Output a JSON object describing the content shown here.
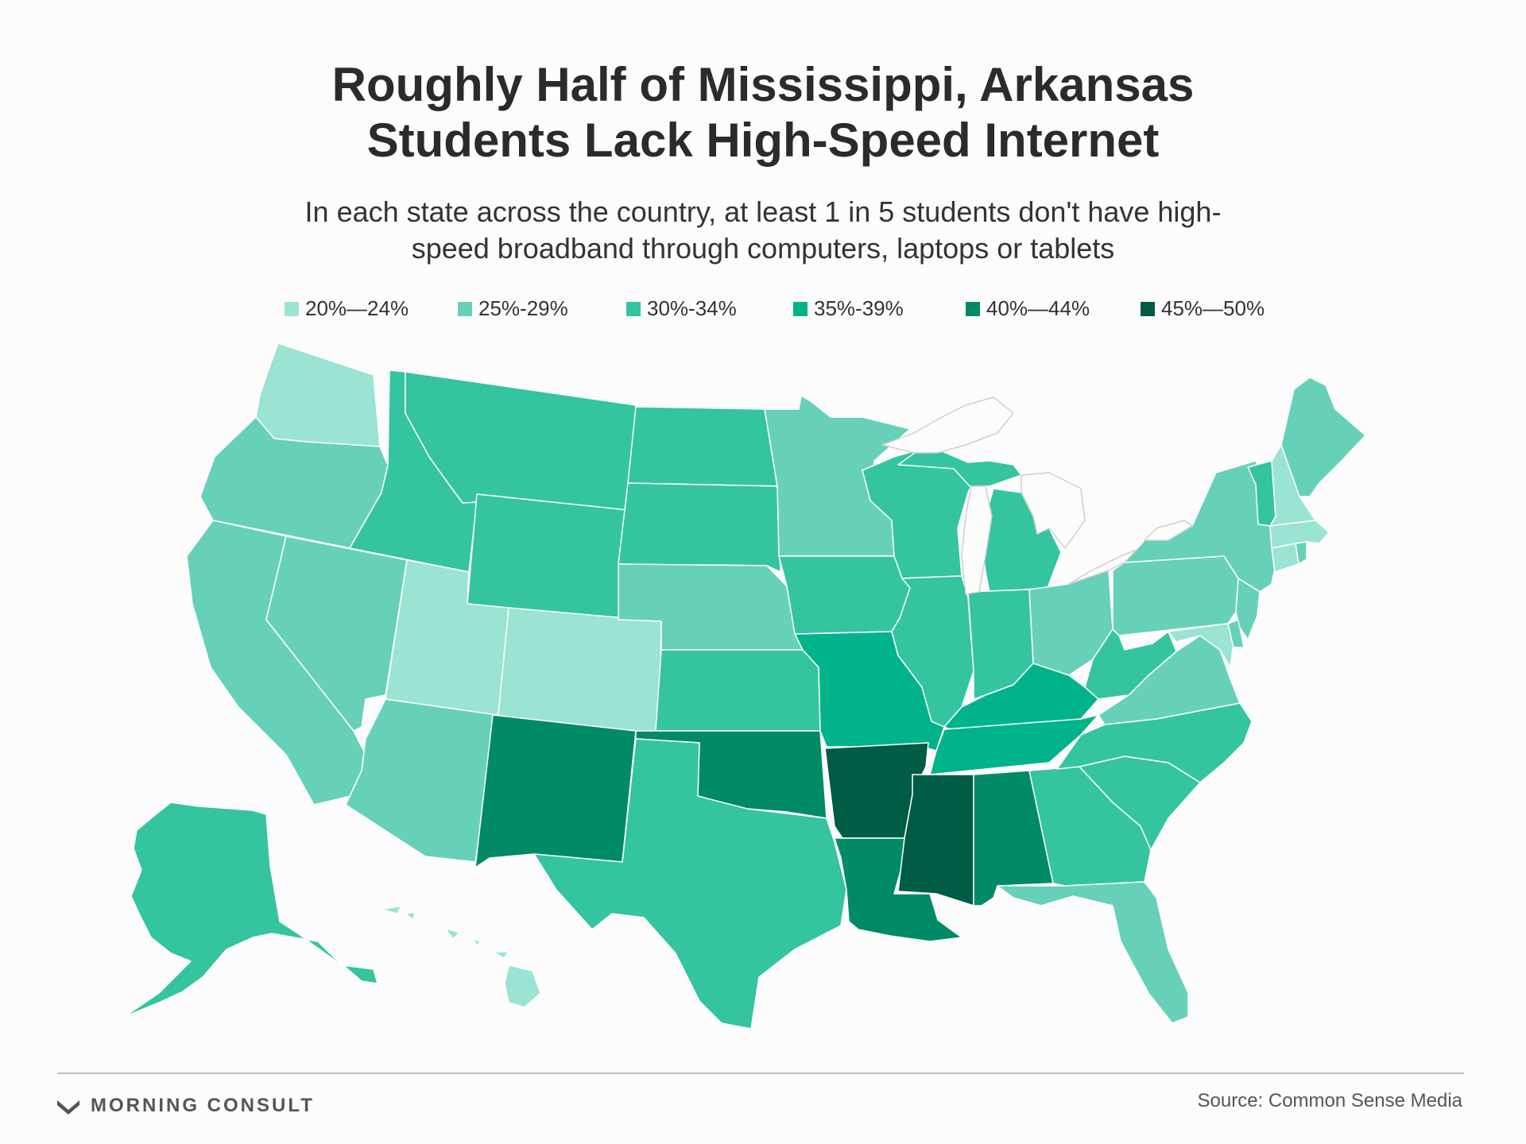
{
  "title": {
    "line1": "Roughly Half of Mississippi, Arkansas",
    "line2": "Students Lack High-Speed Internet"
  },
  "subtitle": {
    "line1": "In each state across the country, at least 1 in 5 students don't have high-",
    "line2": "speed broadband through computers, laptops or tablets"
  },
  "legend": [
    {
      "label": "20%—24%",
      "color": "#9be3d2"
    },
    {
      "label": "25%-29%",
      "color": "#66d1b8"
    },
    {
      "label": "30%-34%",
      "color": "#34c4a0"
    },
    {
      "label": "35%-39%",
      "color": "#00b38a"
    },
    {
      "label": "40%—44%",
      "color": "#008a66"
    },
    {
      "label": "45%—50%",
      "color": "#005c45"
    }
  ],
  "states": [
    {
      "name": "Washington",
      "bin": "20%—24%"
    },
    {
      "name": "Oregon",
      "bin": "25%-29%"
    },
    {
      "name": "California",
      "bin": "25%-29%"
    },
    {
      "name": "Nevada",
      "bin": "25%-29%"
    },
    {
      "name": "Idaho",
      "bin": "30%-34%"
    },
    {
      "name": "Montana",
      "bin": "30%-34%"
    },
    {
      "name": "Wyoming",
      "bin": "30%-34%"
    },
    {
      "name": "Utah",
      "bin": "20%—24%"
    },
    {
      "name": "Colorado",
      "bin": "20%—24%"
    },
    {
      "name": "Arizona",
      "bin": "25%-29%"
    },
    {
      "name": "New Mexico",
      "bin": "40%—44%"
    },
    {
      "name": "North Dakota",
      "bin": "30%-34%"
    },
    {
      "name": "South Dakota",
      "bin": "30%-34%"
    },
    {
      "name": "Nebraska",
      "bin": "25%-29%"
    },
    {
      "name": "Kansas",
      "bin": "30%-34%"
    },
    {
      "name": "Oklahoma",
      "bin": "40%—44%"
    },
    {
      "name": "Texas",
      "bin": "30%-34%"
    },
    {
      "name": "Minnesota",
      "bin": "25%-29%"
    },
    {
      "name": "Iowa",
      "bin": "30%-34%"
    },
    {
      "name": "Missouri",
      "bin": "35%-39%"
    },
    {
      "name": "Arkansas",
      "bin": "45%—50%"
    },
    {
      "name": "Louisiana",
      "bin": "40%—44%"
    },
    {
      "name": "Wisconsin",
      "bin": "30%-34%"
    },
    {
      "name": "Illinois",
      "bin": "30%-34%"
    },
    {
      "name": "Michigan",
      "bin": "30%-34%"
    },
    {
      "name": "Indiana",
      "bin": "30%-34%"
    },
    {
      "name": "Ohio",
      "bin": "25%-29%"
    },
    {
      "name": "Kentucky",
      "bin": "35%-39%"
    },
    {
      "name": "Tennessee",
      "bin": "35%-39%"
    },
    {
      "name": "Mississippi",
      "bin": "45%—50%"
    },
    {
      "name": "Alabama",
      "bin": "40%—44%"
    },
    {
      "name": "Georgia",
      "bin": "30%-34%"
    },
    {
      "name": "Florida",
      "bin": "25%-29%"
    },
    {
      "name": "South Carolina",
      "bin": "30%-34%"
    },
    {
      "name": "North Carolina",
      "bin": "30%-34%"
    },
    {
      "name": "Virginia",
      "bin": "25%-29%"
    },
    {
      "name": "West Virginia",
      "bin": "30%-34%"
    },
    {
      "name": "Pennsylvania",
      "bin": "25%-29%"
    },
    {
      "name": "New York",
      "bin": "25%-29%"
    },
    {
      "name": "Maryland",
      "bin": "20%—24%"
    },
    {
      "name": "Delaware",
      "bin": "25%-29%"
    },
    {
      "name": "New Jersey",
      "bin": "25%-29%"
    },
    {
      "name": "Connecticut",
      "bin": "20%—24%"
    },
    {
      "name": "Rhode Island",
      "bin": "25%-29%"
    },
    {
      "name": "Massachusetts",
      "bin": "20%—24%"
    },
    {
      "name": "Vermont",
      "bin": "30%-34%"
    },
    {
      "name": "New Hampshire",
      "bin": "20%—24%"
    },
    {
      "name": "Maine",
      "bin": "25%-29%"
    },
    {
      "name": "Alaska",
      "bin": "30%-34%"
    },
    {
      "name": "Hawaii",
      "bin": "20%—24%"
    }
  ],
  "footer": {
    "brand": "MORNING CONSULT",
    "source": "Source: Common Sense Media"
  }
}
